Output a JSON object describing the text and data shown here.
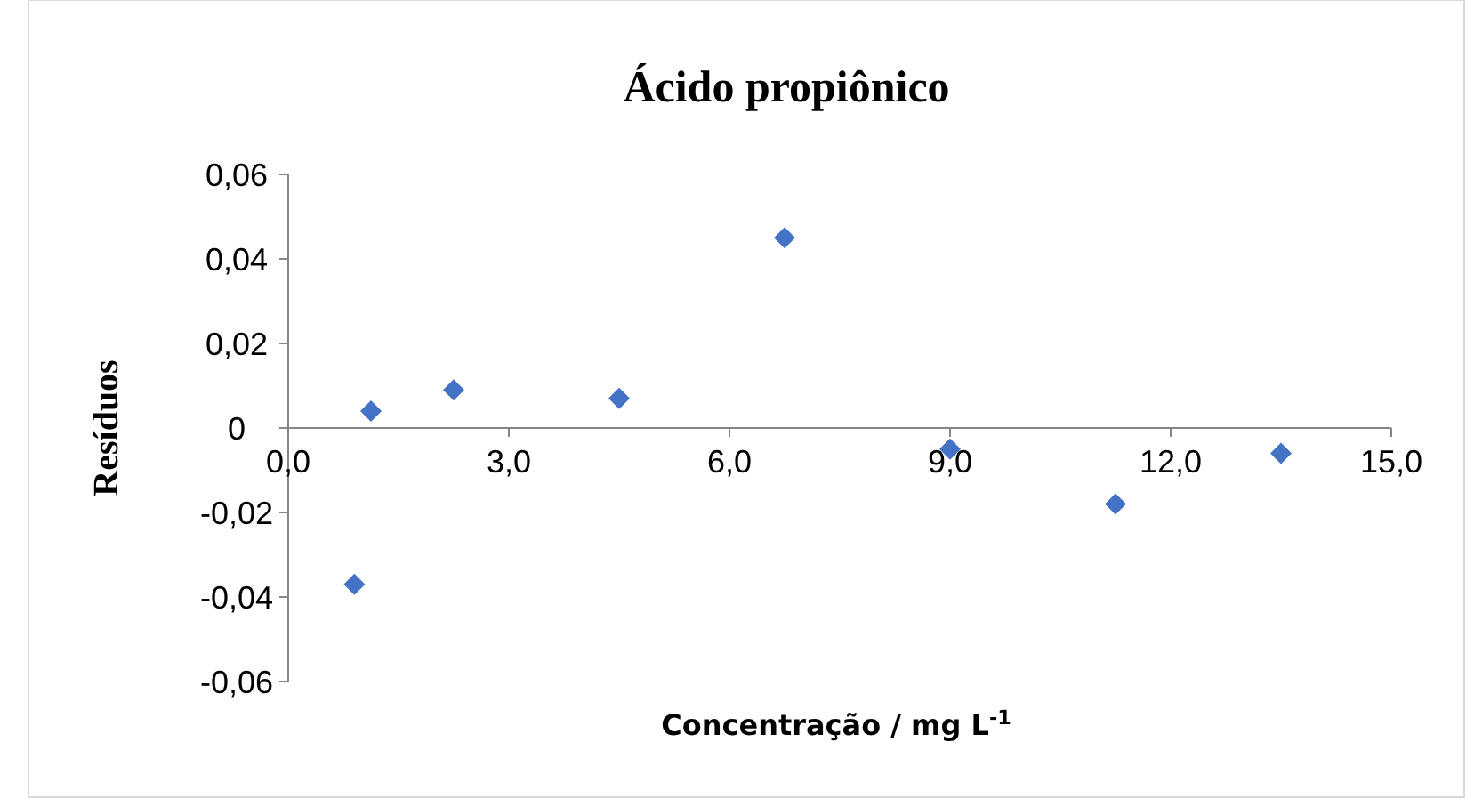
{
  "chart_data": {
    "type": "scatter",
    "title": "Ácido propiônico",
    "xlabel": "Concentração / mg L$^{-1}$",
    "ylabel": "Resíduos",
    "x": [
      0.9,
      1.125,
      2.25,
      4.5,
      6.75,
      9.0,
      11.25,
      13.5
    ],
    "series": [
      {
        "color": "#4472c4",
        "values": [
          -0.037,
          0.004,
          0.009,
          0.007,
          0.045,
          -0.005,
          -0.018,
          -0.006
        ]
      }
    ],
    "xlim": [
      0,
      15
    ],
    "xticks": [
      {
        "value": 0,
        "label": "0,0"
      },
      {
        "value": 3,
        "label": "3,0"
      },
      {
        "value": 6,
        "label": "6,0"
      },
      {
        "value": 9,
        "label": "9,0"
      },
      {
        "value": 12,
        "label": "12,0"
      },
      {
        "value": 15,
        "label": "15,0"
      }
    ],
    "ylim": [
      -0.06,
      0.06
    ],
    "yticks": [
      {
        "value": -0.06,
        "label": "-0,06"
      },
      {
        "value": -0.04,
        "label": "-0,04"
      },
      {
        "value": -0.02,
        "label": "-0,02"
      },
      {
        "value": 0,
        "label": "0"
      },
      {
        "value": 0.02,
        "label": "0,02"
      },
      {
        "value": 0.04,
        "label": "0,04"
      },
      {
        "value": 0.06,
        "label": "0,06"
      }
    ],
    "marker": "diamond"
  }
}
